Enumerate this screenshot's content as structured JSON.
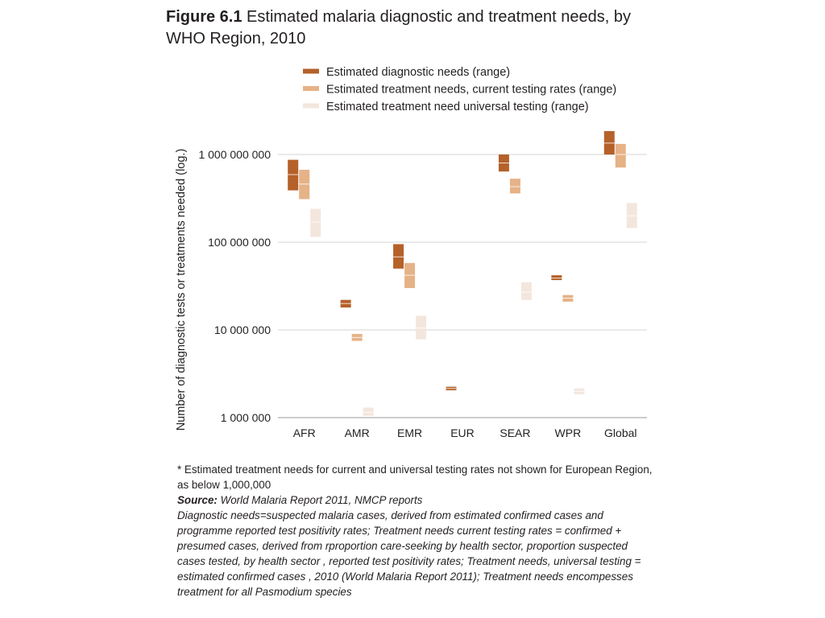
{
  "figure": {
    "number": "Figure 6.1",
    "title": "Estimated malaria diagnostic and treatment needs, by WHO Region, 2010"
  },
  "chart_data": {
    "type": "range-bar",
    "title": "Estimated malaria diagnostic and treatment needs, by WHO Region, 2010",
    "ylabel": "Number of diagnostic tests or treatments needed (log.)",
    "xlabel": "",
    "yscale": "log",
    "ylim": [
      1000000,
      1000000000
    ],
    "yticks": [
      {
        "value": 1000000,
        "label": "1 000 000"
      },
      {
        "value": 10000000,
        "label": "10 000 000"
      },
      {
        "value": 100000000,
        "label": "100 000 000"
      },
      {
        "value": 1000000000,
        "label": "1 000 000 000"
      }
    ],
    "grid": true,
    "legend_position": "top",
    "categories": [
      "AFR",
      "AMR",
      "EMR",
      "EUR",
      "SEAR",
      "WPR",
      "Global"
    ],
    "series": [
      {
        "name": "Estimated diagnostic needs (range)",
        "color": "#b5612a",
        "ranges": [
          {
            "low": 390000000,
            "mid": 590000000,
            "high": 870000000
          },
          {
            "low": 18000000,
            "mid": 20000000,
            "high": 22000000
          },
          {
            "low": 50000000,
            "mid": 68000000,
            "high": 95000000
          },
          {
            "low": 2050000,
            "mid": 2150000,
            "high": 2250000
          },
          {
            "low": 640000000,
            "mid": 800000000,
            "high": 1000000000
          },
          {
            "low": 37000000,
            "mid": 39000000,
            "high": 42000000
          },
          {
            "low": 1000000000,
            "mid": 1350000000,
            "high": 1850000000
          }
        ]
      },
      {
        "name": "Estimated treatment needs, current testing rates (range)",
        "color": "#e6b287",
        "ranges": [
          {
            "low": 310000000,
            "mid": 460000000,
            "high": 670000000
          },
          {
            "low": 7500000,
            "mid": 8200000,
            "high": 9000000
          },
          {
            "low": 30000000,
            "mid": 42000000,
            "high": 58000000
          },
          null,
          {
            "low": 360000000,
            "mid": 430000000,
            "high": 530000000
          },
          {
            "low": 21000000,
            "mid": 23000000,
            "high": 25000000
          },
          {
            "low": 710000000,
            "mid": 1000000000,
            "high": 1320000000
          }
        ]
      },
      {
        "name": "Estimated treatment need universal testing (range)",
        "color": "#f3e6dd",
        "ranges": [
          {
            "low": 115000000,
            "mid": 170000000,
            "high": 240000000
          },
          {
            "low": 1050000,
            "mid": 1150000,
            "high": 1300000
          },
          {
            "low": 7800000,
            "mid": 10500000,
            "high": 14500000
          },
          null,
          {
            "low": 22000000,
            "mid": 27000000,
            "high": 35000000
          },
          {
            "low": 1850000,
            "mid": 2000000,
            "high": 2150000
          },
          {
            "low": 145000000,
            "mid": 200000000,
            "high": 280000000
          }
        ]
      }
    ]
  },
  "notes": {
    "footnote": "* Estimated treatment needs for current and universal testing rates not shown for European Region, as below 1,000,000",
    "source_label": "Source:",
    "source_text": " World Malaria Report 2011, NMCP reports",
    "description": "Diagnostic needs=suspected malaria cases, derived from estimated confirmed cases and programme reported test positivity rates; Treatment needs current testing rates = confirmed + presumed  cases, derived from rproportion  care-seeking by health sector, proportion  suspected cases tested, by health sector , reported test positivity rates; Treatment needs, universal testing = estimated confirmed cases , 2010 (World Malaria Report 2011); Treatment needs encompesses treatment for all Pasmodium species"
  }
}
